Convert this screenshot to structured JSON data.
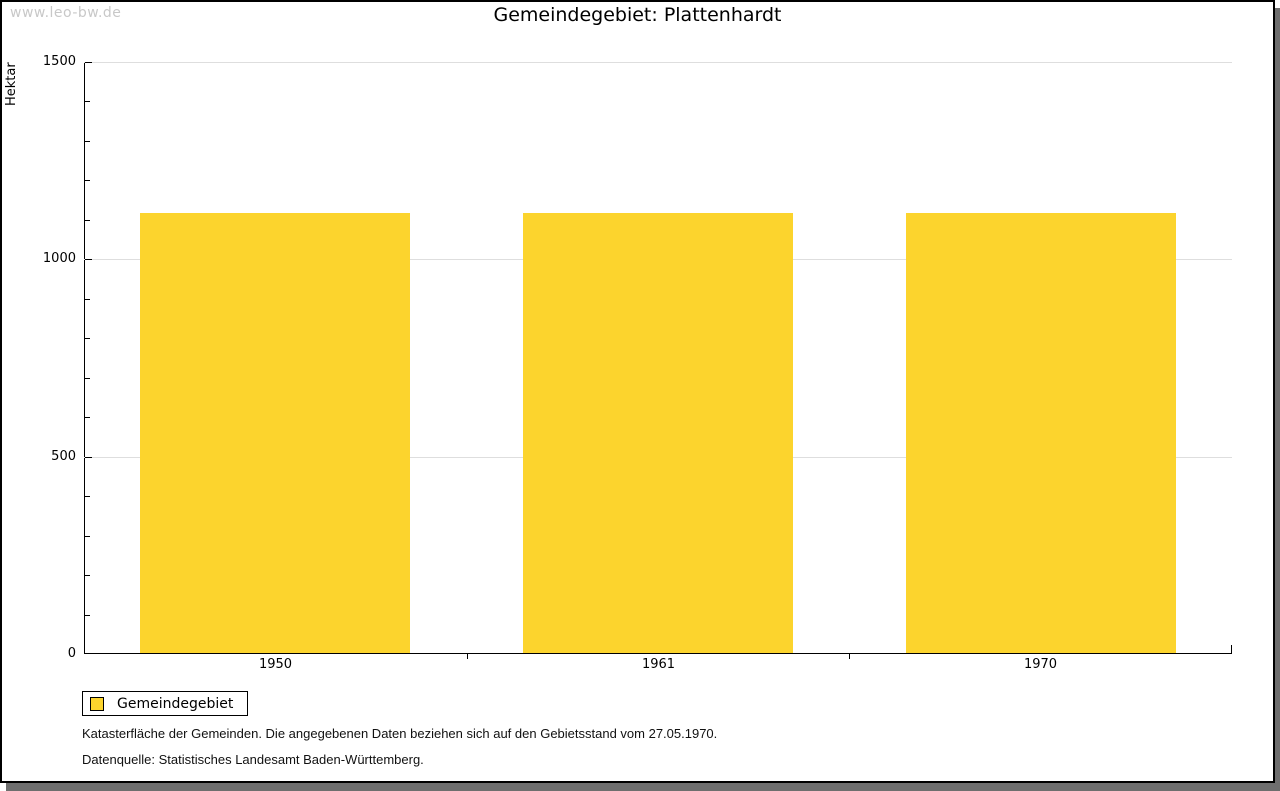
{
  "watermark": "www.leo-bw.de",
  "title": "Gemeindegebiet: Plattenhardt",
  "chart_data": {
    "type": "bar",
    "title": "Gemeindegebiet: Plattenhardt",
    "categories": [
      "1950",
      "1961",
      "1970"
    ],
    "series": [
      {
        "name": "Gemeindegebiet",
        "values": [
          1117,
          1117,
          1117
        ]
      }
    ],
    "xlabel": "",
    "ylabel": "Hektar",
    "ylim": [
      0,
      1500
    ],
    "yticks_major": [
      0,
      500,
      1000,
      1500
    ],
    "ytick_minor_step": 100,
    "grid": "horizontal-major-on",
    "legend_position": "bottom-left",
    "bar_color": "#FCD42D",
    "gridline_color": "#dedede"
  },
  "legend": {
    "items": [
      {
        "label": "Gemeindegebiet",
        "color": "#FCD42D"
      }
    ]
  },
  "notes": {
    "line1": "Katasterfläche der Gemeinden. Die angegebenen Daten beziehen sich auf den Gebietsstand vom 27.05.1970.",
    "line2": "Datenquelle: Statistisches Landesamt Baden-Württemberg."
  },
  "colors": {
    "frame_border": "#000000",
    "frame_shadow": "#6e6e6e",
    "watermark": "#c8c8c8",
    "background": "#ffffff"
  }
}
